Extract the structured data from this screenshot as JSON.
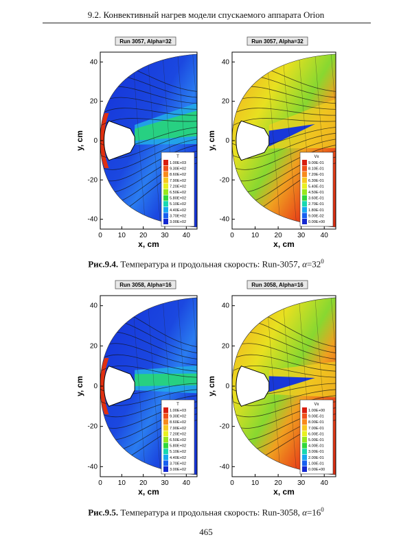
{
  "header": {
    "title": "9.2. Конвективный нагрев модели спускаемого аппарата Orion"
  },
  "figures": [
    {
      "caption_label": "Рис.9.4.",
      "caption_text": "Температура и продольная скорость: Run-3057,",
      "caption_alpha_symbol": "α",
      "caption_alpha_value": "=32",
      "caption_deg": "0",
      "panels": [
        {
          "title": "Run 3057, Alpha=32",
          "type": "temperature",
          "legend_title": "T",
          "legend_values": [
            "1.00E+03",
            "9.30E+02",
            "8.60E+02",
            "7.90E+02",
            "7.20E+02",
            "6.50E+02",
            "5.80E+02",
            "5.10E+02",
            "4.40E+02",
            "3.70E+02",
            "3.00E+02"
          ]
        },
        {
          "title": "Run 3057, Alpha=32",
          "type": "velocity",
          "legend_title": "Vx",
          "legend_values": [
            "9.00E-01",
            "8.10E-01",
            "7.20E-01",
            "6.30E-01",
            "5.40E-01",
            "4.50E-01",
            "3.60E-01",
            "2.70E-01",
            "1.80E-01",
            "9.00E-02",
            "0.00E+00"
          ]
        }
      ]
    },
    {
      "caption_label": "Рис.9.5.",
      "caption_text": "Температура и продольная скорость: Run-3058,",
      "caption_alpha_symbol": "α",
      "caption_alpha_value": "=16",
      "caption_deg": "0",
      "panels": [
        {
          "title": "Run 3058, Alpha=16",
          "type": "temperature",
          "legend_title": "T",
          "legend_values": [
            "1.00E+03",
            "9.30E+02",
            "8.60E+02",
            "7.90E+02",
            "7.20E+02",
            "6.50E+02",
            "5.80E+02",
            "5.10E+02",
            "4.40E+02",
            "3.70E+02",
            "3.00E+02"
          ]
        },
        {
          "title": "Run 3058, Alpha=16",
          "type": "velocity",
          "legend_title": "Vx",
          "legend_values": [
            "1.00E+00",
            "9.00E-01",
            "8.00E-01",
            "7.00E-01",
            "6.00E-01",
            "5.00E-01",
            "4.00E-01",
            "3.00E-01",
            "2.00E-01",
            "1.00E-01",
            "0.00E+00"
          ]
        }
      ]
    }
  ],
  "axes": {
    "xlabel": "x, cm",
    "ylabel": "y, cm",
    "xticks": [
      "0",
      "10",
      "20",
      "30",
      "40"
    ],
    "yticks": [
      "40",
      "20",
      "0",
      "-20",
      "-40"
    ],
    "xlim": [
      0,
      45
    ],
    "ylim": [
      -45,
      45
    ]
  },
  "colors": {
    "blue": "#1838d8",
    "red": "#e02a10"
  },
  "page_number": "465"
}
